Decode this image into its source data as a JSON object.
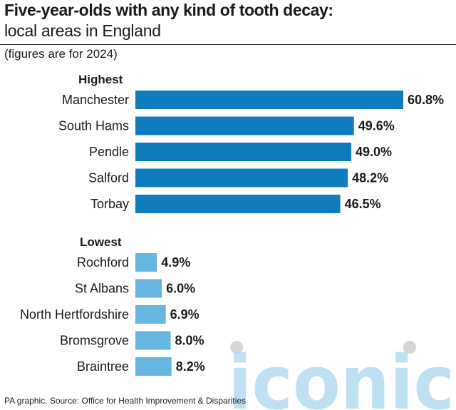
{
  "title": "Five-year-olds with any kind of tooth decay:",
  "subtitle": "local areas in England",
  "note": "(figures are for 2024)",
  "footer": "PA graphic. Source: Office for Health Improvement & Disparities",
  "watermark_text": "iconic",
  "colors": {
    "highest": "#0f7cc0",
    "lowest": "#66b6e2",
    "watermark": "#a8d8ef",
    "dot": "#d6d6d6"
  },
  "chart_data": [
    {
      "type": "bar",
      "orientation": "horizontal",
      "group": "Highest",
      "categories": [
        "Manchester",
        "South Hams",
        "Pendle",
        "Salford",
        "Torbay"
      ],
      "values": [
        60.8,
        49.6,
        49.0,
        48.2,
        46.5
      ],
      "value_labels": [
        "60.8%",
        "49.6%",
        "49.0%",
        "48.2%",
        "46.5%"
      ],
      "unit": "%"
    },
    {
      "type": "bar",
      "orientation": "horizontal",
      "group": "Lowest",
      "categories": [
        "Rochford",
        "St Albans",
        "North Hertfordshire",
        "Bromsgrove",
        "Braintree"
      ],
      "values": [
        4.9,
        6.0,
        6.9,
        8.0,
        8.2
      ],
      "value_labels": [
        "4.9%",
        "6.0%",
        "6.9%",
        "8.0%",
        "8.2%"
      ],
      "unit": "%"
    }
  ]
}
